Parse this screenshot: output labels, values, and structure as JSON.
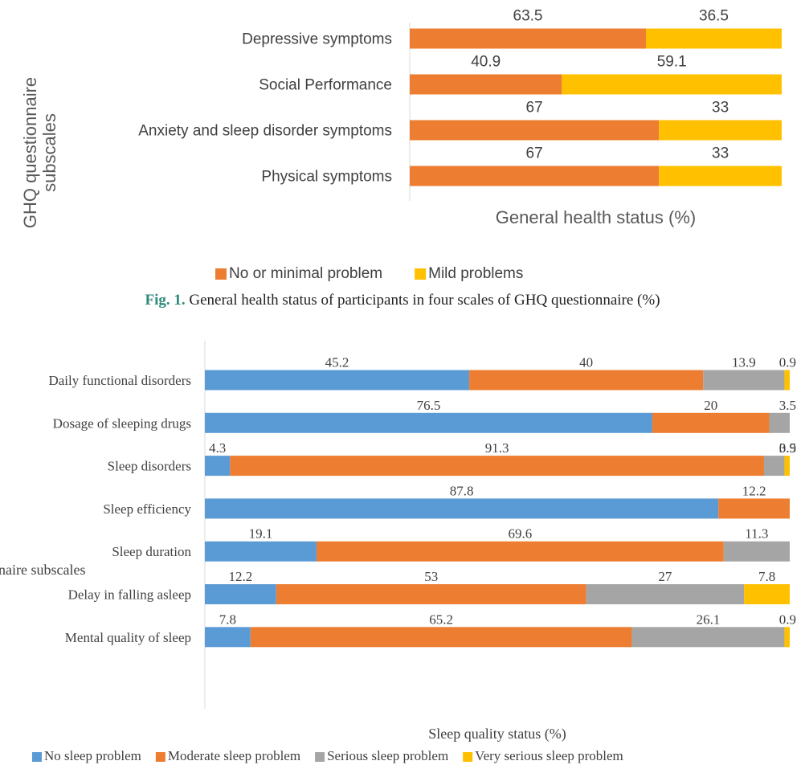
{
  "figure1": {
    "caption_label": "Fig. 1.",
    "caption_text": "General health status of participants in four scales of GHQ questionnaire (%)",
    "chart_data": {
      "type": "bar",
      "orientation": "horizontal",
      "stacked": true,
      "categories": [
        "Depressive symptoms",
        "Social Performance",
        "Anxiety and sleep disorder symptoms",
        "Physical symptoms"
      ],
      "series": [
        {
          "name": "No or minimal problem",
          "values": [
            63.5,
            40.9,
            67,
            67
          ]
        },
        {
          "name": "Mild problems",
          "values": [
            36.5,
            59.1,
            33,
            33
          ]
        }
      ],
      "xlabel": "General health status (%)",
      "ylabel": "GHQ questionnaire subscales",
      "xlim": [
        0,
        100
      ],
      "legend_position": "bottom",
      "colors": [
        "#ed7d31",
        "#ffc000"
      ],
      "data_labels": true,
      "grid": false
    }
  },
  "figure2": {
    "chart_data": {
      "type": "bar",
      "orientation": "horizontal",
      "stacked": true,
      "categories": [
        "Daily functional disorders",
        "Dosage of sleeping drugs",
        "Sleep disorders",
        "Sleep efficiency",
        "Sleep duration",
        "Delay in falling asleep",
        "Mental quality of sleep"
      ],
      "series": [
        {
          "name": "No sleep problem",
          "values": [
            45.2,
            76.5,
            4.3,
            87.8,
            19.1,
            12.2,
            7.8
          ]
        },
        {
          "name": "Moderate sleep problem",
          "values": [
            40,
            20,
            91.3,
            12.2,
            69.6,
            53,
            65.2
          ]
        },
        {
          "name": "Serious sleep problem",
          "values": [
            13.9,
            3.5,
            3.5,
            0,
            11.3,
            27,
            26.1
          ]
        },
        {
          "name": "Very serious sleep problem",
          "values": [
            0.9,
            0,
            0.9,
            0,
            0,
            7.8,
            0.9
          ]
        }
      ],
      "xlabel": "Sleep quality status (%)",
      "ylabel": "PSQI questionnaire subscales",
      "xlim": [
        0,
        100
      ],
      "legend_position": "bottom",
      "colors": [
        "#5b9bd5",
        "#ed7d31",
        "#a5a5a5",
        "#ffc000"
      ],
      "data_labels": true,
      "grid": false
    }
  }
}
